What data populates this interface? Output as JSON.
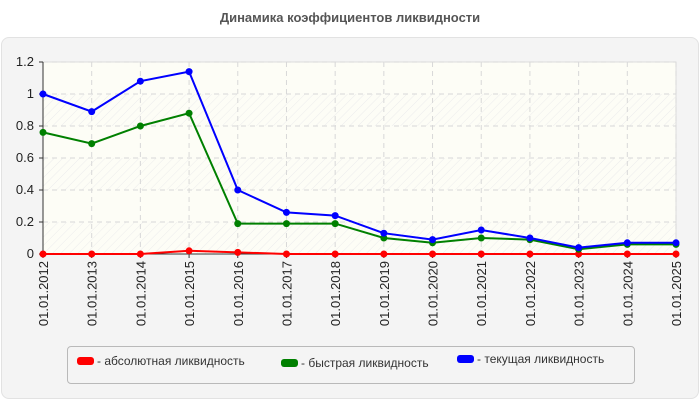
{
  "chart_data": {
    "type": "line",
    "title": "Динамика коэффициентов ликвидности",
    "xlabel": "",
    "ylabel": "",
    "ylim": [
      0,
      1.2
    ],
    "yticks": [
      "0",
      "0.2",
      "0.4",
      "0.6",
      "0.8",
      "1",
      "1.2"
    ],
    "grid": true,
    "legend_position": "bottom",
    "categories": [
      "01.01.2012",
      "01.01.2013",
      "01.01.2014",
      "01.01.2015",
      "01.01.2016",
      "01.01.2017",
      "01.01.2018",
      "01.01.2019",
      "01.01.2020",
      "01.01.2021",
      "01.01.2022",
      "01.01.2023",
      "01.01.2024",
      "01.01.2025"
    ],
    "series": [
      {
        "name": "- абсолютная ликвидность",
        "color": "#ff0000",
        "values": [
          0.0,
          0.0,
          0.0,
          0.02,
          0.01,
          0.0,
          0.0,
          0.0,
          0.0,
          0.0,
          0.0,
          0.0,
          0.0,
          0.0
        ]
      },
      {
        "name": "- быстрая ликвидность",
        "color": "#008000",
        "values": [
          0.76,
          0.69,
          0.8,
          0.88,
          0.19,
          0.19,
          0.19,
          0.1,
          0.07,
          0.1,
          0.09,
          0.03,
          0.06,
          0.06
        ]
      },
      {
        "name": "- текущая ликвидность",
        "color": "#0000ff",
        "values": [
          1.0,
          0.89,
          1.08,
          1.14,
          0.4,
          0.26,
          0.24,
          0.13,
          0.09,
          0.15,
          0.1,
          0.04,
          0.07,
          0.07
        ]
      }
    ]
  }
}
